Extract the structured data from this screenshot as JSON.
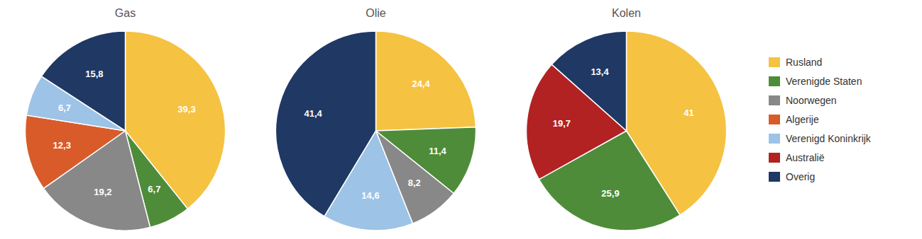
{
  "chart_data": [
    {
      "type": "pie",
      "title": "Gas",
      "categories": [
        "Rusland",
        "Verenigde Staten",
        "Noorwegen",
        "Algerije",
        "Verenigd Koninkrijk",
        "Overig"
      ],
      "values": [
        39.3,
        6.7,
        19.2,
        12.3,
        6.7,
        15.8
      ],
      "value_labels": [
        "39,3",
        "6,7",
        "19,2",
        "12,3",
        "6,7",
        "15,8"
      ],
      "colors": [
        "#F5C242",
        "#4E8C3A",
        "#888888",
        "#D95B2A",
        "#9DC3E6",
        "#1F3864"
      ],
      "data_labels": true,
      "legend": "right"
    },
    {
      "type": "pie",
      "title": "Olie",
      "categories": [
        "Rusland",
        "Verenigde Staten",
        "Noorwegen",
        "Verenigd Koninkrijk",
        "Overig"
      ],
      "values": [
        24.4,
        11.4,
        8.2,
        14.6,
        41.4
      ],
      "value_labels": [
        "24,4",
        "11,4",
        "8,2",
        "14,6",
        "41,4"
      ],
      "colors": [
        "#F5C242",
        "#4E8C3A",
        "#888888",
        "#9DC3E6",
        "#1F3864"
      ],
      "data_labels": true,
      "legend": "right"
    },
    {
      "type": "pie",
      "title": "Kolen",
      "categories": [
        "Rusland",
        "Verenigde Staten",
        "Australië",
        "Overig"
      ],
      "values": [
        41,
        25.9,
        19.7,
        13.4
      ],
      "value_labels": [
        "41",
        "25,9",
        "19,7",
        "13,4"
      ],
      "colors": [
        "#F5C242",
        "#4E8C3A",
        "#B22222",
        "#1F3864"
      ],
      "data_labels": true,
      "legend": "right"
    }
  ]
}
